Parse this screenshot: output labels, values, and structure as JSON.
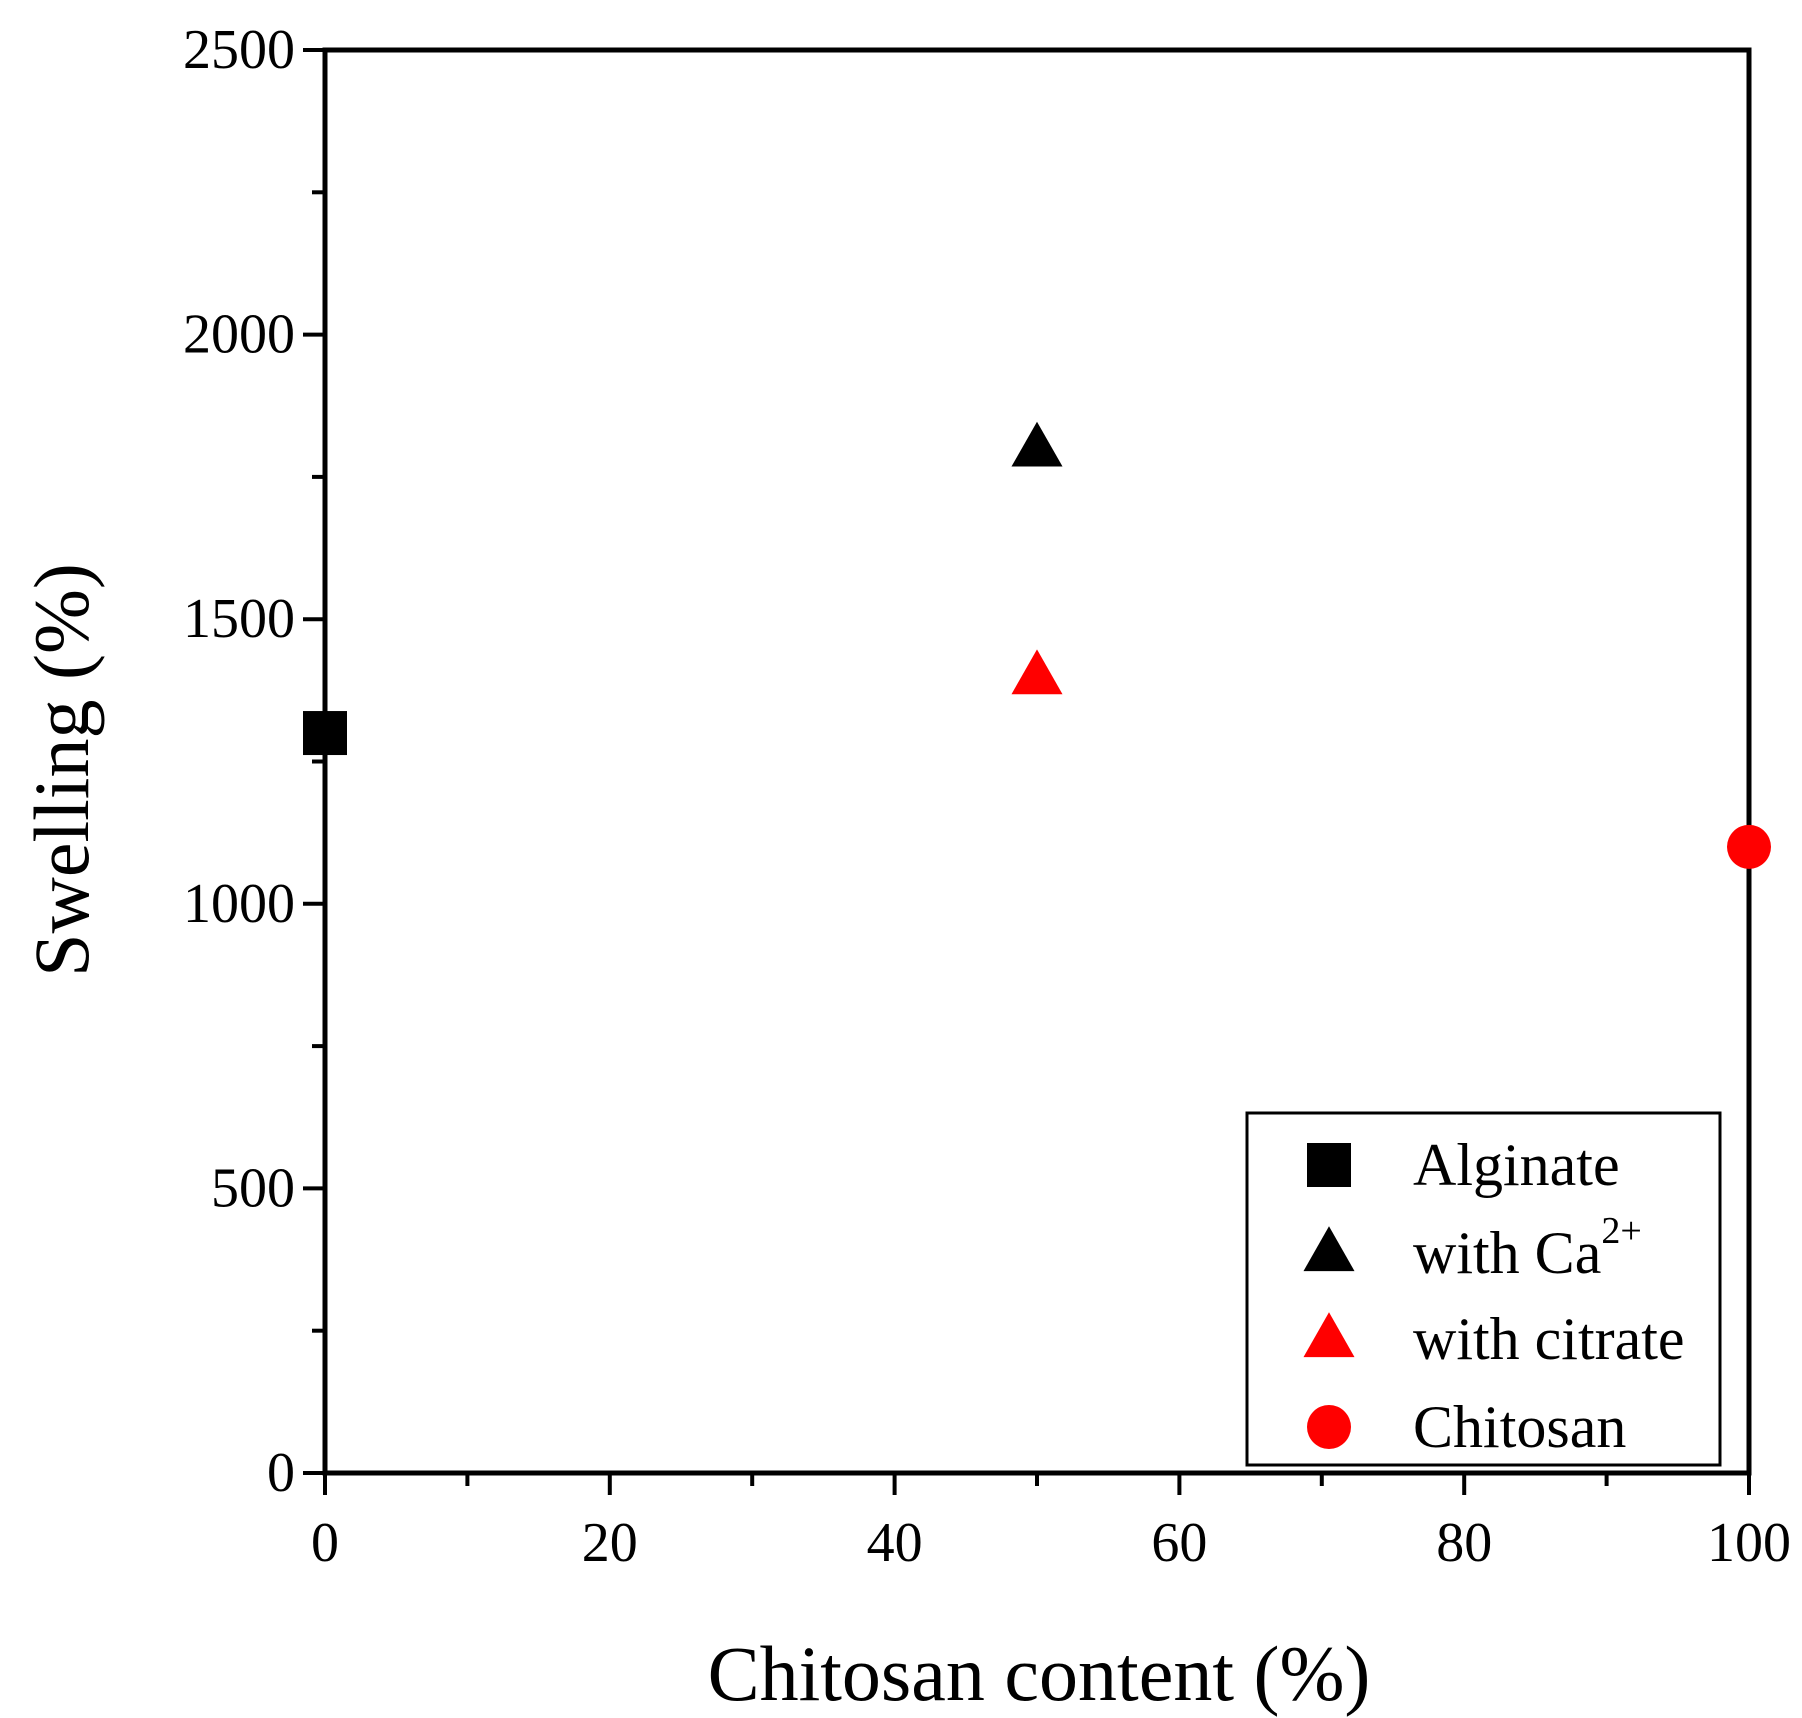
{
  "chart_data": {
    "type": "scatter",
    "title": "",
    "xlabel": "Chitosan content (%)",
    "ylabel": "Swelling (%)",
    "xlim": [
      0,
      100
    ],
    "ylim": [
      0,
      2500
    ],
    "x_major_ticks": [
      0,
      20,
      40,
      60,
      80,
      100
    ],
    "x_minor_ticks": [
      10,
      30,
      50,
      70,
      90
    ],
    "y_major_ticks": [
      0,
      500,
      1000,
      1500,
      2000,
      2500
    ],
    "y_minor_ticks": [
      250,
      750,
      1250,
      1750,
      2250
    ],
    "x_tick_labels": [
      "0",
      "20",
      "40",
      "60",
      "80",
      "100"
    ],
    "y_tick_labels": [
      "0",
      "500",
      "1000",
      "1500",
      "2000",
      "2500"
    ],
    "grid": false,
    "legend_position": "bottom-right",
    "series": [
      {
        "name": "Alginate",
        "name_superscript": "",
        "marker": "square",
        "color": "#000000",
        "points": [
          {
            "x": 0,
            "y": 1300
          }
        ]
      },
      {
        "name": "with Ca",
        "name_superscript": "2+",
        "marker": "triangle",
        "color": "#000000",
        "points": [
          {
            "x": 50,
            "y": 1800
          }
        ]
      },
      {
        "name": "with citrate",
        "name_superscript": "",
        "marker": "triangle",
        "color": "#ff0000",
        "points": [
          {
            "x": 50,
            "y": 1400
          }
        ]
      },
      {
        "name": "Chitosan",
        "name_superscript": "",
        "marker": "circle",
        "color": "#ff0000",
        "points": [
          {
            "x": 100,
            "y": 1100
          }
        ]
      }
    ]
  }
}
